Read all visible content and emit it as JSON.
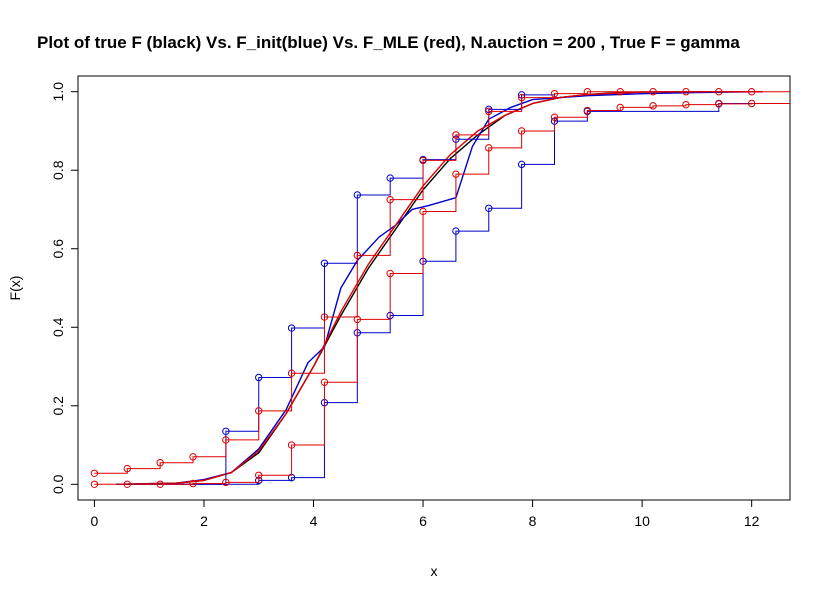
{
  "chart_data": {
    "type": "line",
    "title": "Plot of true F (black) Vs. F_init(blue) Vs. F_MLE (red), N.auction = 200 , True F = gamma",
    "xlabel": "x",
    "ylabel": "F(x)",
    "xlim": [
      -0.3,
      12.7
    ],
    "ylim": [
      -0.04,
      1.04
    ],
    "x_ticks": [
      "0",
      "2",
      "4",
      "6",
      "8",
      "10",
      "12"
    ],
    "x_tick_values": [
      0,
      2,
      4,
      6,
      8,
      10,
      12
    ],
    "y_ticks": [
      "0.0",
      "0.2",
      "0.4",
      "0.6",
      "0.8",
      "1.0"
    ],
    "y_tick_values": [
      0,
      0.2,
      0.4,
      0.6,
      0.8,
      1.0
    ],
    "grid": false,
    "legend": "none",
    "colors": {
      "true": "#000000",
      "init": "#0000cc",
      "mle": "#dd0000"
    },
    "series": [
      {
        "kind": "smooth",
        "color": "#000000",
        "x": [
          0.4,
          1.0,
          1.5,
          2.0,
          2.5,
          3.0,
          3.5,
          4.0,
          4.5,
          5.0,
          5.5,
          6.0,
          6.5,
          7.0,
          7.5,
          8.0,
          8.5,
          9.0,
          9.5,
          10.0,
          11.0,
          12.2
        ],
        "y": [
          0.0,
          0.001,
          0.003,
          0.01,
          0.03,
          0.08,
          0.18,
          0.3,
          0.43,
          0.55,
          0.65,
          0.75,
          0.83,
          0.89,
          0.94,
          0.97,
          0.985,
          0.993,
          0.997,
          0.999,
          1.0,
          1.0
        ]
      },
      {
        "kind": "smooth",
        "color": "#0000cc",
        "x": [
          0.4,
          1.5,
          2.0,
          2.5,
          3.0,
          3.5,
          3.9,
          4.2,
          4.5,
          4.8,
          5.2,
          5.5,
          5.8,
          6.1,
          6.6,
          6.9,
          7.2,
          7.6,
          8.0,
          9.0,
          10.0,
          11.0,
          12.2
        ],
        "y": [
          0.0,
          0.003,
          0.012,
          0.03,
          0.09,
          0.19,
          0.31,
          0.35,
          0.5,
          0.57,
          0.63,
          0.66,
          0.7,
          0.71,
          0.73,
          0.86,
          0.93,
          0.96,
          0.98,
          0.99,
          0.995,
          0.998,
          1.0
        ]
      },
      {
        "kind": "smooth",
        "color": "#dd0000",
        "x": [
          0.4,
          1.5,
          2.0,
          2.5,
          3.0,
          3.5,
          4.0,
          4.5,
          5.0,
          5.5,
          6.0,
          6.5,
          7.0,
          7.5,
          8.0,
          8.5,
          9.0,
          10.0,
          11.0,
          12.2
        ],
        "y": [
          0.0,
          0.003,
          0.01,
          0.03,
          0.085,
          0.18,
          0.3,
          0.44,
          0.56,
          0.66,
          0.76,
          0.84,
          0.9,
          0.94,
          0.97,
          0.985,
          0.993,
          0.999,
          1.0,
          1.0
        ]
      },
      {
        "kind": "step",
        "color": "#0000cc",
        "x": [
          2.4,
          3.0,
          3.6,
          4.2,
          4.8,
          5.4,
          6.0,
          6.6,
          7.2,
          7.8
        ],
        "y": [
          0.135,
          0.272,
          0.398,
          0.563,
          0.737,
          0.78,
          0.827,
          0.879,
          0.955,
          0.992
        ],
        "start_y": 0.0,
        "end_x": 8.4,
        "end_y": 0.992
      },
      {
        "kind": "step",
        "color": "#0000cc",
        "x": [
          3.0,
          3.6,
          4.2,
          4.8,
          5.4,
          6.0,
          6.6,
          7.2,
          7.8,
          8.4,
          9.0,
          11.4
        ],
        "y": [
          0.01,
          0.017,
          0.208,
          0.386,
          0.43,
          0.568,
          0.645,
          0.703,
          0.815,
          0.925,
          0.95,
          0.97
        ],
        "start_y": 0.0,
        "end_x": 12.0,
        "end_y": 0.97
      },
      {
        "kind": "step",
        "color": "#dd0000",
        "x": [
          0.0,
          0.6,
          1.2,
          1.8,
          2.4,
          3.0,
          3.6,
          4.2,
          4.8,
          5.4,
          6.0,
          6.6,
          7.2,
          7.8,
          8.4,
          9.0,
          9.6,
          10.2,
          10.8,
          11.4,
          12.0
        ],
        "y": [
          0.028,
          0.04,
          0.055,
          0.07,
          0.113,
          0.187,
          0.283,
          0.426,
          0.583,
          0.725,
          0.825,
          0.89,
          0.95,
          0.985,
          0.995,
          1.0,
          1.0,
          1.0,
          1.0,
          1.0,
          1.0
        ],
        "end_x": 12.7,
        "end_y": 1.0
      },
      {
        "kind": "step",
        "color": "#dd0000",
        "x": [
          0.0,
          0.6,
          1.2,
          1.8,
          2.4,
          3.0,
          3.6,
          4.2,
          4.8,
          5.4,
          6.0,
          6.6,
          7.2,
          7.8,
          8.4,
          9.0,
          9.6,
          10.2,
          10.8,
          11.4,
          12.0
        ],
        "y": [
          0.0,
          0.0,
          0.0,
          0.002,
          0.005,
          0.023,
          0.1,
          0.26,
          0.42,
          0.537,
          0.695,
          0.79,
          0.857,
          0.9,
          0.935,
          0.952,
          0.96,
          0.964,
          0.967,
          0.969,
          0.97
        ],
        "end_x": 12.7,
        "end_y": 0.97
      }
    ]
  }
}
